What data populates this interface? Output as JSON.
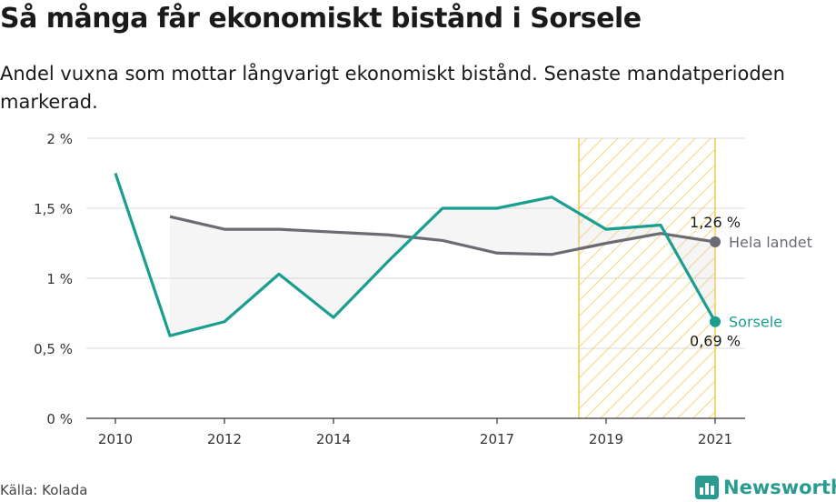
{
  "title": "Så många får ekonomiskt bistånd i Sorsele",
  "subtitle": "Andel vuxna som mottar långvarigt ekonomiskt bistånd. Senaste mandatperioden markerad.",
  "source": "Källa: Kolada",
  "brand": "Newsworthy",
  "colors": {
    "sorsele": "#1a9e8f",
    "riket": "#6b6b73",
    "highlight": "#f4c84a"
  },
  "chart_data": {
    "type": "line",
    "x_ticks": [
      2010,
      2012,
      2014,
      2017,
      2019,
      2021
    ],
    "y_ticks": [
      0,
      0.5,
      1,
      1.5,
      2
    ],
    "y_tick_labels": [
      "0 %",
      "0,5 %",
      "1 %",
      "1,5 %",
      "2 %"
    ],
    "xlim": [
      2010,
      2021
    ],
    "ylim": [
      0,
      2
    ],
    "highlight_range": [
      2018.5,
      2021
    ],
    "grid": true,
    "series": [
      {
        "name": "Sorsele",
        "color": "#1a9e8f",
        "x": [
          2010,
          2011,
          2012,
          2013,
          2014,
          2015,
          2016,
          2017,
          2018,
          2019,
          2020,
          2021
        ],
        "values": [
          1.75,
          0.59,
          0.69,
          1.03,
          0.72,
          1.12,
          1.5,
          1.5,
          1.58,
          1.35,
          1.38,
          0.69
        ],
        "end_label": "0,69 %"
      },
      {
        "name": "Hela landet",
        "color": "#6b6b73",
        "x": [
          2011,
          2012,
          2013,
          2014,
          2015,
          2016,
          2017,
          2018,
          2019,
          2020,
          2021
        ],
        "values": [
          1.44,
          1.35,
          1.35,
          1.33,
          1.31,
          1.27,
          1.18,
          1.17,
          1.25,
          1.32,
          1.26
        ],
        "end_label": "1,26 %"
      }
    ]
  }
}
